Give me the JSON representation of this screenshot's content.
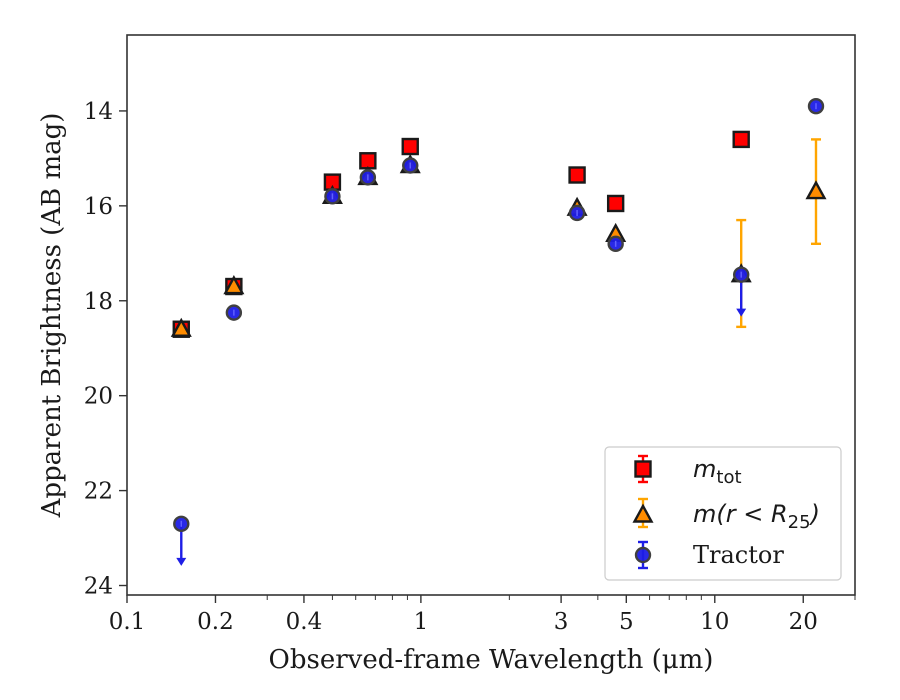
{
  "chart_data": {
    "type": "scatter",
    "xlabel": "Observed-frame Wavelength (μm)",
    "ylabel": "Apparent Brightness (AB mag)",
    "x_scale": "log",
    "xlim": [
      0.1,
      30
    ],
    "ylim": [
      24.2,
      12.4
    ],
    "y_inverted": true,
    "grid": false,
    "legend_position": "lower-right",
    "x_ticks": [
      {
        "value": 0.1,
        "label": "0.1"
      },
      {
        "value": 0.2,
        "label": "0.2"
      },
      {
        "value": 0.4,
        "label": "0.4"
      },
      {
        "value": 1,
        "label": "1"
      },
      {
        "value": 3,
        "label": "3"
      },
      {
        "value": 5,
        "label": "5"
      },
      {
        "value": 10,
        "label": "10"
      },
      {
        "value": 20,
        "label": "20"
      }
    ],
    "y_ticks": [
      {
        "value": 14,
        "label": "14"
      },
      {
        "value": 16,
        "label": "16"
      },
      {
        "value": 18,
        "label": "18"
      },
      {
        "value": 20,
        "label": "20"
      },
      {
        "value": 22,
        "label": "22"
      },
      {
        "value": 24,
        "label": "24"
      }
    ],
    "series": [
      {
        "name": "m_tot",
        "legend_main": "m",
        "legend_sub": "tot",
        "marker": "square",
        "color": "#ff0000",
        "edge": "#1a1a1a",
        "points": [
          {
            "x": 0.153,
            "y": 18.6
          },
          {
            "x": 0.231,
            "y": 17.7
          },
          {
            "x": 0.5,
            "y": 15.5
          },
          {
            "x": 0.66,
            "y": 15.05
          },
          {
            "x": 0.92,
            "y": 14.75
          },
          {
            "x": 3.4,
            "y": 15.35
          },
          {
            "x": 4.6,
            "y": 15.95
          },
          {
            "x": 12.3,
            "y": 14.6
          }
        ]
      },
      {
        "name": "m(r<R25)",
        "legend_main": "m(r < R",
        "legend_sub": "25",
        "legend_close": ")",
        "marker": "triangle",
        "color": "#ff8c00",
        "errcolor": "#ffa500",
        "edge": "#1a1a1a",
        "points": [
          {
            "x": 0.153,
            "y": 18.6
          },
          {
            "x": 0.231,
            "y": 17.7
          },
          {
            "x": 0.5,
            "y": 15.8
          },
          {
            "x": 0.66,
            "y": 15.4
          },
          {
            "x": 0.92,
            "y": 15.15
          },
          {
            "x": 3.4,
            "y": 16.05
          },
          {
            "x": 4.6,
            "y": 16.6
          },
          {
            "x": 12.3,
            "y": 17.45,
            "yerr_low": 16.3,
            "yerr_high": 18.55
          },
          {
            "x": 22.1,
            "y": 15.7,
            "yerr_low": 14.6,
            "yerr_high": 16.8
          }
        ]
      },
      {
        "name": "Tractor",
        "marker": "circle",
        "color": "#1e1ee6",
        "edge": "#404040",
        "points": [
          {
            "x": 0.153,
            "y": 22.7,
            "upper_limit": true
          },
          {
            "x": 0.231,
            "y": 18.25
          },
          {
            "x": 0.5,
            "y": 15.8
          },
          {
            "x": 0.66,
            "y": 15.4
          },
          {
            "x": 0.92,
            "y": 15.15
          },
          {
            "x": 3.4,
            "y": 16.15
          },
          {
            "x": 4.6,
            "y": 16.8
          },
          {
            "x": 12.3,
            "y": 17.45,
            "upper_limit": true
          },
          {
            "x": 22.1,
            "y": 13.9
          }
        ]
      }
    ],
    "legend": [
      {
        "label": "m_tot"
      },
      {
        "label": "m(r < R25)"
      },
      {
        "label": "Tractor"
      }
    ]
  }
}
